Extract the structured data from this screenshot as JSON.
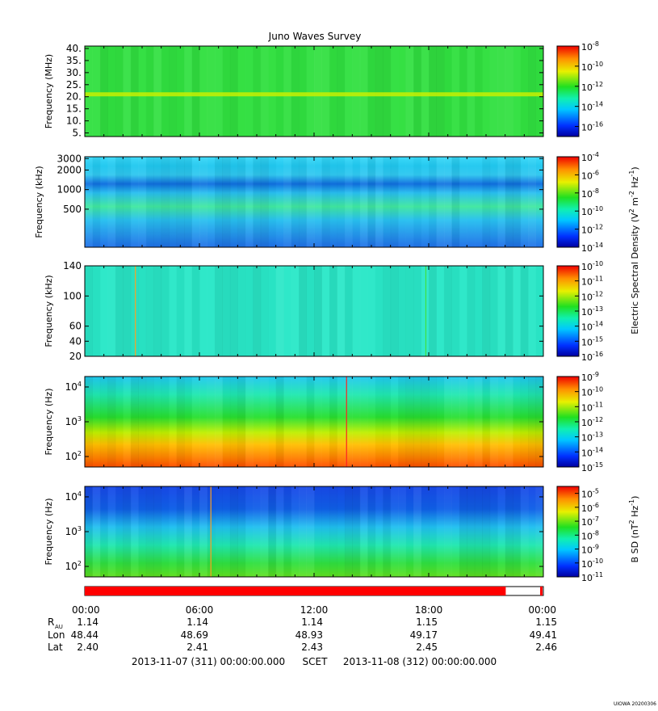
{
  "title": "Juno Waves Survey",
  "footer_id": "UIOWA 20200306",
  "colors": {
    "bar_fill": "#ff0000",
    "bar_empty": "#ffffff",
    "border": "#000000"
  },
  "shared_axis": {
    "time_ticks": [
      "00:00",
      "06:00",
      "12:00",
      "18:00",
      "00:00"
    ],
    "ephemeris": [
      {
        "label": "R",
        "sub": "AU",
        "values": [
          "1.14",
          "1.14",
          "1.14",
          "1.15",
          "1.15"
        ]
      },
      {
        "label": "Lon",
        "sub": "",
        "values": [
          "48.44",
          "48.69",
          "48.93",
          "49.17",
          "49.41"
        ]
      },
      {
        "label": "Lat",
        "sub": "",
        "values": [
          "2.40",
          "2.41",
          "2.43",
          "2.45",
          "2.46"
        ]
      }
    ],
    "start": "2013-11-07 (311) 00:00:00.000",
    "scet": "SCET",
    "end": "2013-11-08 (312) 00:00:00.000",
    "coverage_fraction": 0.918
  },
  "colorbar_label_e": "Electric Spectral Density (V2 m-2 Hz-1)",
  "colorbar_label_b": "B SD (nT2 Hz-1)",
  "chart_data": [
    {
      "type": "heatmap",
      "panel": "hfr-high",
      "ylabel": "Frequency (MHz)",
      "yscale": "linear",
      "ylim": [
        3.5,
        41
      ],
      "yticks": [
        {
          "v": 40,
          "label": "40."
        },
        {
          "v": 35,
          "label": "35."
        },
        {
          "v": 30,
          "label": "30."
        },
        {
          "v": 25,
          "label": "25."
        },
        {
          "v": 20,
          "label": "20."
        },
        {
          "v": 15,
          "label": "15."
        },
        {
          "v": 10,
          "label": "10."
        },
        {
          "v": 5,
          "label": "5."
        }
      ],
      "colorbar": {
        "exp_min": -17,
        "exp_max": -8,
        "ticks": [
          -8,
          -10,
          -12,
          -14,
          -16
        ]
      },
      "bands": [
        {
          "freq": 21,
          "exp": -12
        }
      ],
      "base": "#31e040",
      "vertical_lines": []
    },
    {
      "type": "heatmap",
      "panel": "hfr-low",
      "ylabel": "Frequency (kHz)",
      "yscale": "log",
      "ylim": [
        130,
        3200
      ],
      "yticks": [
        {
          "v": 3000,
          "label": "3000"
        },
        {
          "v": 2000,
          "label": "2000"
        },
        {
          "v": 1000,
          "label": "1000"
        },
        {
          "v": 500,
          "label": "500"
        }
      ],
      "colorbar": {
        "exp_min": -14,
        "exp_max": -4,
        "ticks": [
          -4,
          -6,
          -8,
          -10,
          -12,
          -14
        ]
      },
      "bands": [],
      "base": "#22b8f0",
      "vertical_lines": []
    },
    {
      "type": "heatmap",
      "panel": "lfr-high",
      "ylabel": "Frequency (kHz)",
      "yscale": "linear",
      "ylim": [
        20,
        140
      ],
      "yticks": [
        {
          "v": 140,
          "label": "140"
        },
        {
          "v": 100,
          "label": "100"
        },
        {
          "v": 60,
          "label": "60"
        },
        {
          "v": 40,
          "label": "40"
        },
        {
          "v": 20,
          "label": "20"
        }
      ],
      "colorbar": {
        "exp_min": -16,
        "exp_max": -10,
        "ticks": [
          -10,
          -11,
          -12,
          -13,
          -14,
          -15,
          -16
        ]
      },
      "bands": [],
      "base": "#2ae8c8",
      "vertical_lines": [
        {
          "time_h": 2.65,
          "color": "#ffa020"
        },
        {
          "time_h": 17.85,
          "color": "#40e040"
        }
      ]
    },
    {
      "type": "heatmap",
      "panel": "lfr-low",
      "ylabel": "Frequency (Hz)",
      "yscale": "log",
      "ylim": [
        50,
        20000
      ],
      "yticks": [
        {
          "v": 10000,
          "label": "10^4"
        },
        {
          "v": 1000,
          "label": "10^3"
        },
        {
          "v": 100,
          "label": "10^2"
        }
      ],
      "colorbar": {
        "exp_min": -15,
        "exp_max": -9,
        "ticks": [
          -9,
          -10,
          -11,
          -12,
          -13,
          -14,
          -15
        ]
      },
      "bands": [],
      "base": "gradient-low",
      "vertical_lines": [
        {
          "time_h": 13.7,
          "color": "#ff2020"
        }
      ]
    },
    {
      "type": "heatmap",
      "panel": "bsd",
      "ylabel": "Frequency (Hz)",
      "yscale": "log",
      "ylim": [
        50,
        20000
      ],
      "yticks": [
        {
          "v": 10000,
          "label": "10^4"
        },
        {
          "v": 1000,
          "label": "10^3"
        },
        {
          "v": 100,
          "label": "10^2"
        }
      ],
      "colorbar": {
        "exp_min": -11,
        "exp_max": -4.5,
        "ticks": [
          -5,
          -6,
          -7,
          -8,
          -9,
          -10,
          -11
        ]
      },
      "bands": [],
      "base": "gradient-b",
      "vertical_lines": [
        {
          "time_h": 6.6,
          "color": "#ffa020"
        }
      ]
    }
  ]
}
